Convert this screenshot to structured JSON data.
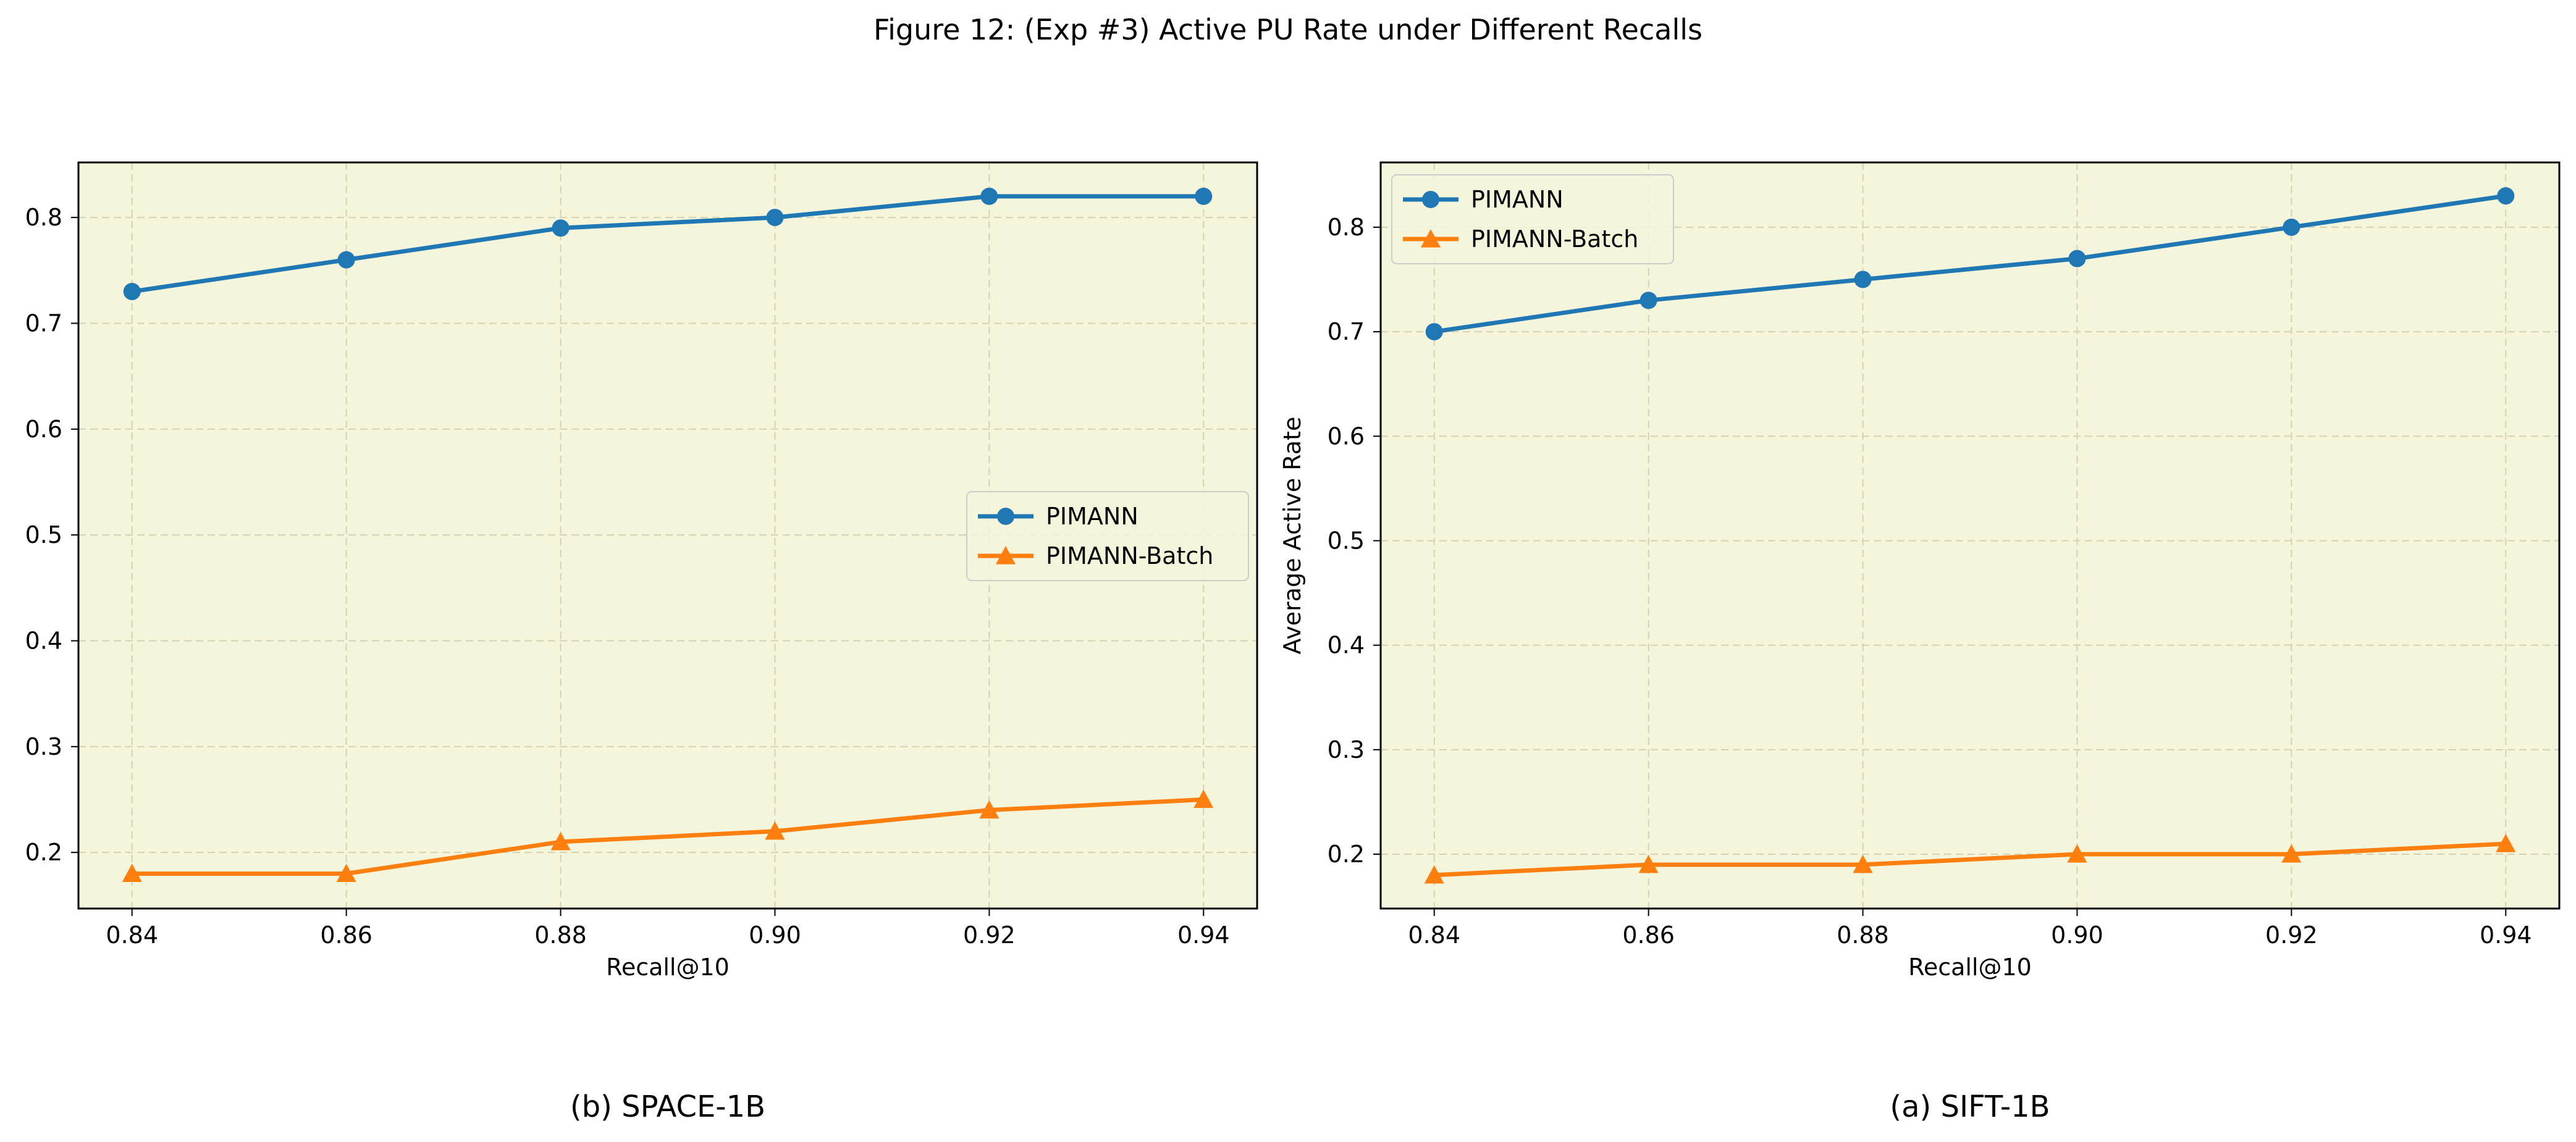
{
  "figure": {
    "title": "Figure 12: (Exp #3) Active PU Rate under Different Recalls"
  },
  "colors": {
    "plot_background": "#f5f5dc",
    "grid": "#d3d3b3",
    "series_pimann": "#1f77b4",
    "series_pimann_batch": "#ff7f0e"
  },
  "chart_data": [
    {
      "type": "line",
      "caption": "(b) SPACE-1B",
      "xlabel": "Recall@10",
      "ylabel": "",
      "x": [
        0.84,
        0.86,
        0.88,
        0.9,
        0.92,
        0.94
      ],
      "xticks": [
        "0.84",
        "0.86",
        "0.88",
        "0.90",
        "0.92",
        "0.94"
      ],
      "yticks": [
        "0.2",
        "0.3",
        "0.4",
        "0.5",
        "0.6",
        "0.7",
        "0.8"
      ],
      "xlim": [
        0.835,
        0.945
      ],
      "ylim": [
        0.147,
        0.852
      ],
      "grid": true,
      "legend_position": "center-right",
      "series": [
        {
          "name": "PIMANN",
          "marker": "circle",
          "values": [
            0.73,
            0.76,
            0.79,
            0.8,
            0.82,
            0.82
          ]
        },
        {
          "name": "PIMANN-Batch",
          "marker": "triangle",
          "values": [
            0.18,
            0.18,
            0.21,
            0.22,
            0.24,
            0.25
          ]
        }
      ]
    },
    {
      "type": "line",
      "caption": "(a) SIFT-1B",
      "xlabel": "Recall@10",
      "ylabel": "Average Active Rate",
      "x": [
        0.84,
        0.86,
        0.88,
        0.9,
        0.92,
        0.94
      ],
      "xticks": [
        "0.84",
        "0.86",
        "0.88",
        "0.90",
        "0.92",
        "0.94"
      ],
      "yticks": [
        "0.2",
        "0.3",
        "0.4",
        "0.5",
        "0.6",
        "0.7",
        "0.8"
      ],
      "xlim": [
        0.835,
        0.945
      ],
      "ylim": [
        0.148,
        0.862
      ],
      "grid": true,
      "legend_position": "top-left",
      "series": [
        {
          "name": "PIMANN",
          "marker": "circle",
          "values": [
            0.7,
            0.73,
            0.75,
            0.77,
            0.8,
            0.83
          ]
        },
        {
          "name": "PIMANN-Batch",
          "marker": "triangle",
          "values": [
            0.18,
            0.19,
            0.19,
            0.2,
            0.2,
            0.21
          ]
        }
      ]
    }
  ]
}
